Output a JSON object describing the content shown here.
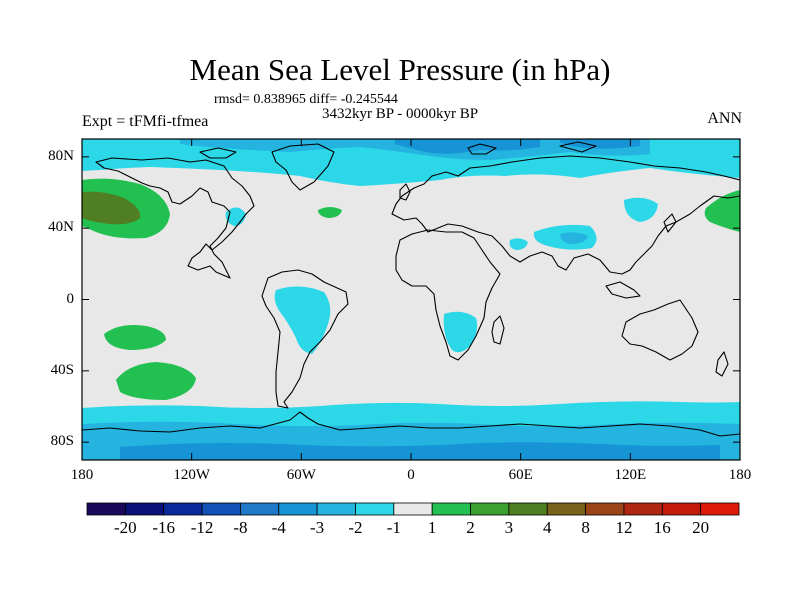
{
  "title": "Mean Sea Level Pressure (in hPa)",
  "stats": "rmsd= 0.838965 diff= -0.245544",
  "period": "3432kyr BP - 0000kyr BP",
  "experiment": "Expt = tFMfi-tfmea",
  "season": "ANN",
  "y_axis": {
    "ticks": [
      {
        "label": "80N",
        "lat": 80
      },
      {
        "label": "40N",
        "lat": 40
      },
      {
        "label": "0",
        "lat": 0
      },
      {
        "label": "40S",
        "lat": -40
      },
      {
        "label": "80S",
        "lat": -80
      }
    ]
  },
  "x_axis": {
    "ticks": [
      {
        "label": "180",
        "lon": -180
      },
      {
        "label": "120W",
        "lon": -120
      },
      {
        "label": "60W",
        "lon": -60
      },
      {
        "label": "0",
        "lon": 0
      },
      {
        "label": "60E",
        "lon": 60
      },
      {
        "label": "120E",
        "lon": 120
      },
      {
        "label": "180",
        "lon": 180
      }
    ]
  },
  "colorbar": {
    "colors": [
      "#1b0a5c",
      "#0a1178",
      "#0b2a9a",
      "#1150b4",
      "#1f78c8",
      "#1694d6",
      "#25b4e0",
      "#2cd7e8",
      "#e8e8e8",
      "#21c050",
      "#3aa030",
      "#507e22",
      "#79621a",
      "#9a4418",
      "#b02812",
      "#c31a0a",
      "#e01a0a"
    ],
    "labels": [
      "-20",
      "-16",
      "-12",
      "-8",
      "-4",
      "-3",
      "-2",
      "-1",
      "1",
      "2",
      "3",
      "4",
      "8",
      "12",
      "16",
      "20"
    ]
  },
  "map": {
    "extent": {
      "lon": [
        -180,
        180
      ],
      "lat": [
        -90,
        90
      ]
    },
    "background_class": "-1 to 1",
    "palette": {
      "neutral": "#e8e8e8",
      "lm1": "#2cd7e8",
      "lm2": "#25b4e0",
      "lm3": "#1694d6",
      "lm4": "#1f78c8",
      "lp1": "#21c050",
      "lp2": "#3aa030",
      "lp3": "#507e22"
    }
  }
}
